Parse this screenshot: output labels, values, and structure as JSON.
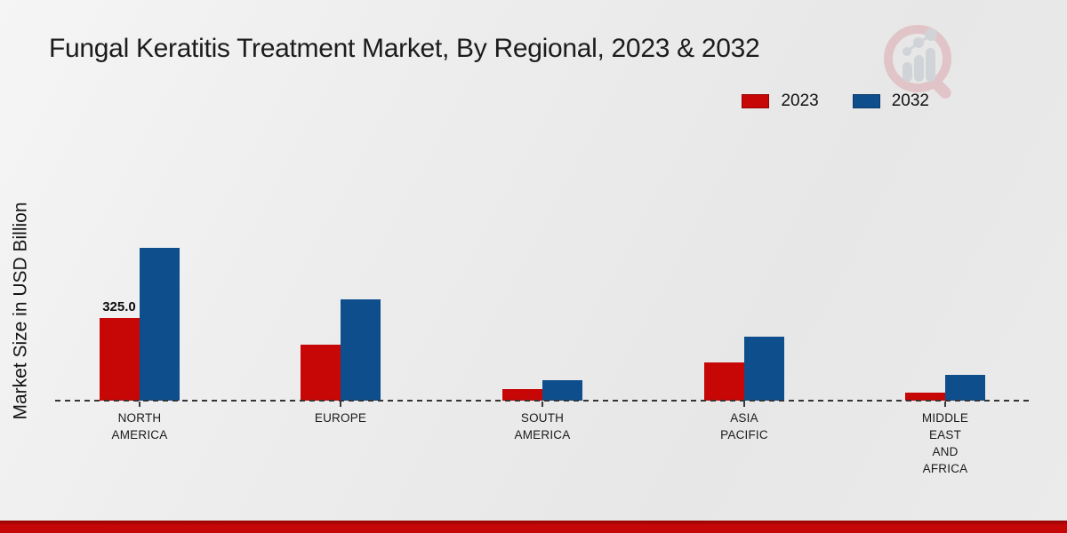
{
  "title": "Fungal Keratitis Treatment Market, By Regional, 2023 & 2032",
  "y_axis_label": "Market Size in USD Billion",
  "legend": [
    {
      "label": "2023",
      "color": "#c70606"
    },
    {
      "label": "2032",
      "color": "#0f4e8c"
    }
  ],
  "icons": {
    "logo": "magnifier-bar-chart-watermark-logo"
  },
  "colors": {
    "series_2023": "#c70606",
    "series_2032": "#0f4e8c",
    "bottom_strip": "#c60707",
    "baseline": "#353535",
    "background": "#ebebeb"
  },
  "chart_data": {
    "type": "bar",
    "title": "Fungal Keratitis Treatment Market, By Regional, 2023 & 2032",
    "categories": [
      "NORTH AMERICA",
      "EUROPE",
      "SOUTH AMERICA",
      "ASIA PACIFIC",
      "MIDDLE EAST AND AFRICA"
    ],
    "category_label_lines": [
      [
        "NORTH",
        "AMERICA"
      ],
      [
        "EUROPE"
      ],
      [
        "SOUTH",
        "AMERICA"
      ],
      [
        "ASIA",
        "PACIFIC"
      ],
      [
        "MIDDLE",
        "EAST",
        "AND",
        "AFRICA"
      ]
    ],
    "series": [
      {
        "name": "2023",
        "color": "#c70606",
        "values": [
          325,
          220,
          45,
          150,
          30
        ]
      },
      {
        "name": "2032",
        "color": "#0f4e8c",
        "values": [
          600,
          400,
          80,
          250,
          100
        ]
      }
    ],
    "xlabel": "",
    "ylabel": "Market Size in USD Billion",
    "ylim": [
      0,
      700
    ],
    "grid": false,
    "y_axis_ticks_visible": false,
    "baseline_style": "dashed",
    "legend_position": "top-right",
    "annotations": [
      {
        "series": "2023",
        "category": "NORTH AMERICA",
        "text": "325.0",
        "value": 325.0
      }
    ]
  }
}
